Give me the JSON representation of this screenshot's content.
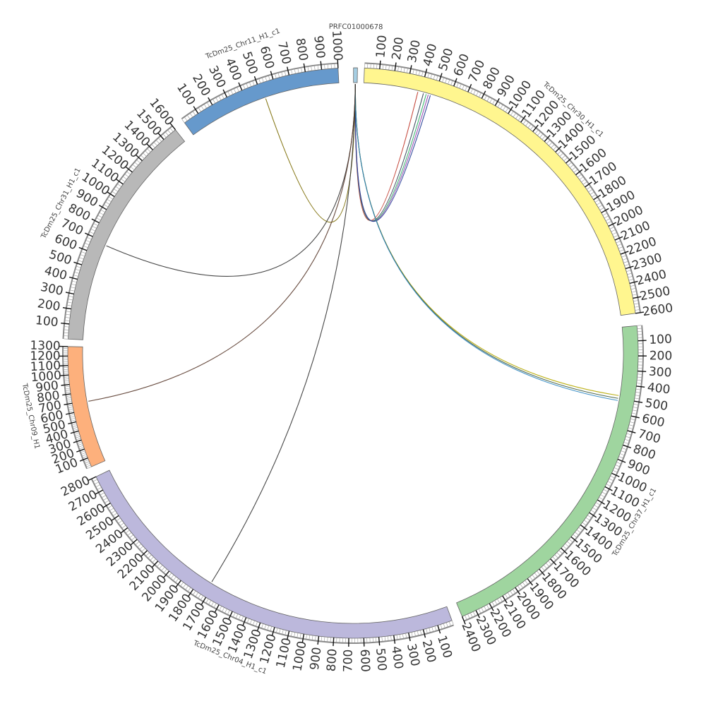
{
  "diagram": {
    "kind": "circos",
    "tick_step": 100,
    "chromosomes": [
      {
        "id": "PRFC01000678",
        "label": "PRFC01000678",
        "color": "#a6cee3",
        "start_deg": 0.1,
        "end_deg": 0.9,
        "max": 0
      },
      {
        "id": "chr30",
        "label": "TcDm25_Chr30_H1_c1",
        "color": "#fff68f",
        "start_deg": 2.3,
        "end_deg": 82.0,
        "max": 2600
      },
      {
        "id": "chr37",
        "label": "TcDm25_Chr37_H1_c1",
        "color": "#9fd59f",
        "start_deg": 84.5,
        "end_deg": 157.5,
        "max": 2400
      },
      {
        "id": "chr04",
        "label": "TcDm25_Chr04_H1_c1",
        "color": "#bcb8dc",
        "start_deg": 159.7,
        "end_deg": 244.3,
        "max": 2800
      },
      {
        "id": "chr09",
        "label": "TcDm25_Chr09_H1",
        "color": "#fdb07c",
        "start_deg": 246.5,
        "end_deg": 271.3,
        "max": 1300
      },
      {
        "id": "chr31",
        "label": "TcDm25_Chr31_H1_c1",
        "color": "#b8b8b8",
        "start_deg": 272.8,
        "end_deg": 321.5,
        "max": 1600
      },
      {
        "id": "chr11",
        "label": "TcDm25_Chr11_H1_c1",
        "color": "#6699cc",
        "start_deg": 323.8,
        "end_deg": 357.0,
        "max": 1000
      }
    ],
    "links": [
      {
        "a": "chr30",
        "a_pos": 380,
        "b": "PRFC01000678",
        "color": "#c0392b"
      },
      {
        "a": "chr30",
        "a_pos": 420,
        "b": "PRFC01000678",
        "color": "#2c3e50"
      },
      {
        "a": "chr30",
        "a_pos": 440,
        "b": "PRFC01000678",
        "color": "#27ae60"
      },
      {
        "a": "chr30",
        "a_pos": 455,
        "b": "PRFC01000678",
        "color": "#8e44ad"
      },
      {
        "a": "chr30",
        "a_pos": 470,
        "b": "PRFC01000678",
        "color": "#1f3a93"
      },
      {
        "a": "chr37",
        "a_pos": 480,
        "b": "PRFC01000678",
        "color": "#b5a800"
      },
      {
        "a": "chr37",
        "a_pos": 500,
        "b": "PRFC01000678",
        "color": "#3d5a40"
      },
      {
        "a": "chr37",
        "a_pos": 515,
        "b": "PRFC01000678",
        "color": "#2e86c1"
      },
      {
        "a": "chr11",
        "a_pos": 520,
        "b": "PRFC01000678",
        "color": "#7a6a00"
      },
      {
        "a": "chr31",
        "a_pos": 680,
        "b": "PRFC01000678",
        "color": "#333333"
      },
      {
        "a": "chr09",
        "a_pos": 690,
        "b": "PRFC01000678",
        "color": "#5a3b2e"
      },
      {
        "a": "chr04",
        "a_pos": 1720,
        "b": "PRFC01000678",
        "color": "#333333"
      }
    ]
  }
}
